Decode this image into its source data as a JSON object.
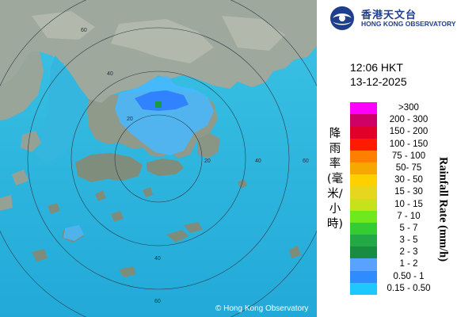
{
  "header": {
    "org_name_zh": "香港天文台",
    "org_name_en": "HONG KONG OBSERVATORY"
  },
  "timestamp": {
    "time": "12:06 HKT",
    "date": "13-12-2025"
  },
  "legend": {
    "unit_zh": "降雨率(毫米/小時)",
    "unit_en": "Rainfall Rate (mm/h)",
    "classes": [
      {
        "label": ">300",
        "color": "#ff00ff"
      },
      {
        "label": "200 - 300",
        "color": "#cc0066"
      },
      {
        "label": "150 - 200",
        "color": "#e0002a"
      },
      {
        "label": "100 - 150",
        "color": "#ff1a00"
      },
      {
        "label": "75 - 100",
        "color": "#ff7f00"
      },
      {
        "label": "50- 75",
        "color": "#f7a800"
      },
      {
        "label": "30 - 50",
        "color": "#ffd000"
      },
      {
        "label": "15 - 30",
        "color": "#e6d61e"
      },
      {
        "label": "10 - 15",
        "color": "#c6e21c"
      },
      {
        "label": "7 - 10",
        "color": "#6fe81e"
      },
      {
        "label": "5 - 7",
        "color": "#33cc33"
      },
      {
        "label": "3 - 5",
        "color": "#22a844"
      },
      {
        "label": "2 - 3",
        "color": "#1a8c40"
      },
      {
        "label": "1 - 2",
        "color": "#5aa2ff"
      },
      {
        "label": "0.50 - 1",
        "color": "#2f8cff"
      },
      {
        "label": "0.15 - 0.50",
        "color": "#1ec8ff"
      }
    ]
  },
  "map": {
    "range_ring_labels": [
      "60",
      "40",
      "20",
      "20",
      "40",
      "60",
      "40",
      "60"
    ]
  },
  "copyright": "© Hong Kong Observatory",
  "colors": {
    "sea": "#2fb7df",
    "land": "#9aa59a",
    "rain_light": "#48b8ff",
    "rain_moderate": "#2e7cff"
  }
}
